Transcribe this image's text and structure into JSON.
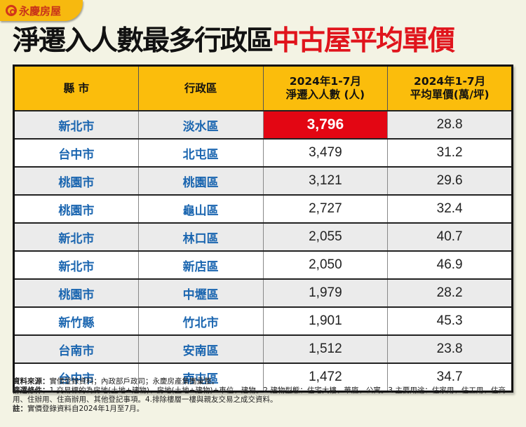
{
  "brand": {
    "logo_icon": "yungching-circle-logo-icon",
    "name": "永慶房屋"
  },
  "title": {
    "black_part": "淨遷入人數最多行政區",
    "red_part": "中古屋平均單價",
    "colors": {
      "black": "#111111",
      "red": "#e0141c"
    }
  },
  "table": {
    "headers": [
      {
        "line1": "縣 市",
        "line2": ""
      },
      {
        "line1": "行政區",
        "line2": ""
      },
      {
        "line1": "2024年1-7月",
        "line2": "淨遷入人數 (人)"
      },
      {
        "line1": "2024年1-7月",
        "line2": "平均單價(萬/坪)"
      }
    ],
    "header_color": "#fbbd0c",
    "highlight_color": "#e30613",
    "rows": [
      {
        "city": "新北市",
        "district": "淡水區",
        "net_inflow": "3,796",
        "avg_price": "28.8",
        "highlight": true
      },
      {
        "city": "台中市",
        "district": "北屯區",
        "net_inflow": "3,479",
        "avg_price": "31.2"
      },
      {
        "city": "桃園市",
        "district": "桃園區",
        "net_inflow": "3,121",
        "avg_price": "29.6"
      },
      {
        "city": "桃園市",
        "district": "龜山區",
        "net_inflow": "2,727",
        "avg_price": "32.4"
      },
      {
        "city": "新北市",
        "district": "林口區",
        "net_inflow": "2,055",
        "avg_price": "40.7"
      },
      {
        "city": "新北市",
        "district": "新店區",
        "net_inflow": "2,050",
        "avg_price": "46.9"
      },
      {
        "city": "桃園市",
        "district": "中壢區",
        "net_inflow": "1,979",
        "avg_price": "28.2"
      },
      {
        "city": "新竹縣",
        "district": "竹北市",
        "net_inflow": "1,901",
        "avg_price": "45.3"
      },
      {
        "city": "台南市",
        "district": "安南區",
        "net_inflow": "1,512",
        "avg_price": "23.8"
      },
      {
        "city": "台中市",
        "district": "南屯區",
        "net_inflow": "1,472",
        "avg_price": "34.7"
      }
    ]
  },
  "notes": {
    "source_label": "資料來源：",
    "source_text": "實價登錄資料；內政部戶政司；永慶房產集團彙整。",
    "filter_label": "篩選條件：",
    "filter_text": "1.交易標的為房地(土地+建物)、房地(土地+建物)+車位、建物。2.建物型態：住宅大樓、華廈、公寓。3.主要用途：住家用、住工用、住商用、住辦用、住商辦用、其他登記事項。4.排除樓層一樓與親友交易之成交資料。",
    "note_label": "註：",
    "note_text": "實價登錄資料自2024年1月至7月。"
  }
}
